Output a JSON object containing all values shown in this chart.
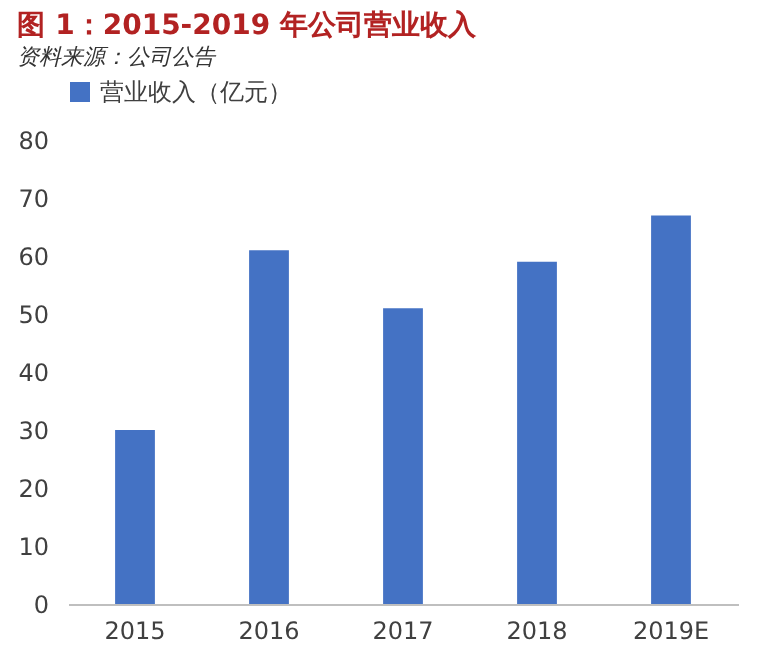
{
  "chart_data": {
    "type": "bar",
    "title": "图 1：2015-2019 年公司营业收入",
    "categories": [
      "2015",
      "2016",
      "2017",
      "2018",
      "2019E"
    ],
    "series": [
      {
        "name": "营业收入（亿元）",
        "color": "#4472c4",
        "values": [
          30,
          61,
          51,
          59,
          67
        ]
      }
    ],
    "ylim": [
      0,
      80
    ],
    "yticks": [
      0,
      10,
      20,
      30,
      40,
      50,
      60,
      70,
      80
    ],
    "grid": false,
    "legend": "top",
    "annotations": [
      "资料来源：公司公告"
    ]
  }
}
